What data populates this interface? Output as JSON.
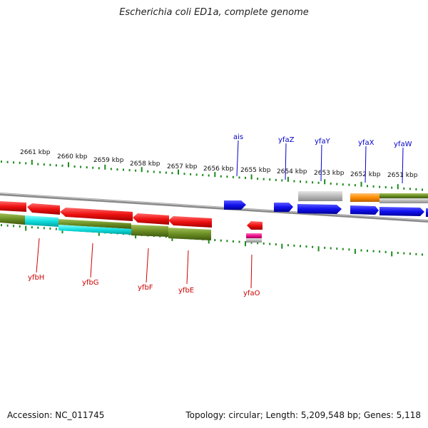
{
  "title": "Escherichia coli ED1a, complete genome",
  "footer": {
    "accession": "Accession: NC_011745",
    "summary": "Topology: circular; Length: 5,209,548 bp; Genes: 5,118"
  },
  "colors": {
    "backbone": "#8a8a8a",
    "ticks": "#1a8a1a",
    "reverse_gene": "#ee1111",
    "forward_gene": "#1111ee",
    "reverse_label": "#cc0000",
    "forward_label": "#0000cc",
    "olive": "#6b8e23",
    "cyan": "#11dddd",
    "gray": "#b8b8b8",
    "orange": "#ff8c00",
    "magenta": "#ee1188"
  },
  "scale_labels": [
    "2661 kbp",
    "2660 kbp",
    "2659 kbp",
    "2658 kbp",
    "2657 kbp",
    "2656 kbp",
    "2655 kbp",
    "2654 kbp",
    "2653 kbp",
    "2652 kbp",
    "2651 kbp"
  ],
  "forward_gene_labels": [
    "ais",
    "yfaZ",
    "yfaY",
    "yfaX",
    "yfaW"
  ],
  "reverse_gene_labels": [
    "yfbH",
    "yfbG",
    "yfbF",
    "yfbE",
    "yfaO"
  ]
}
